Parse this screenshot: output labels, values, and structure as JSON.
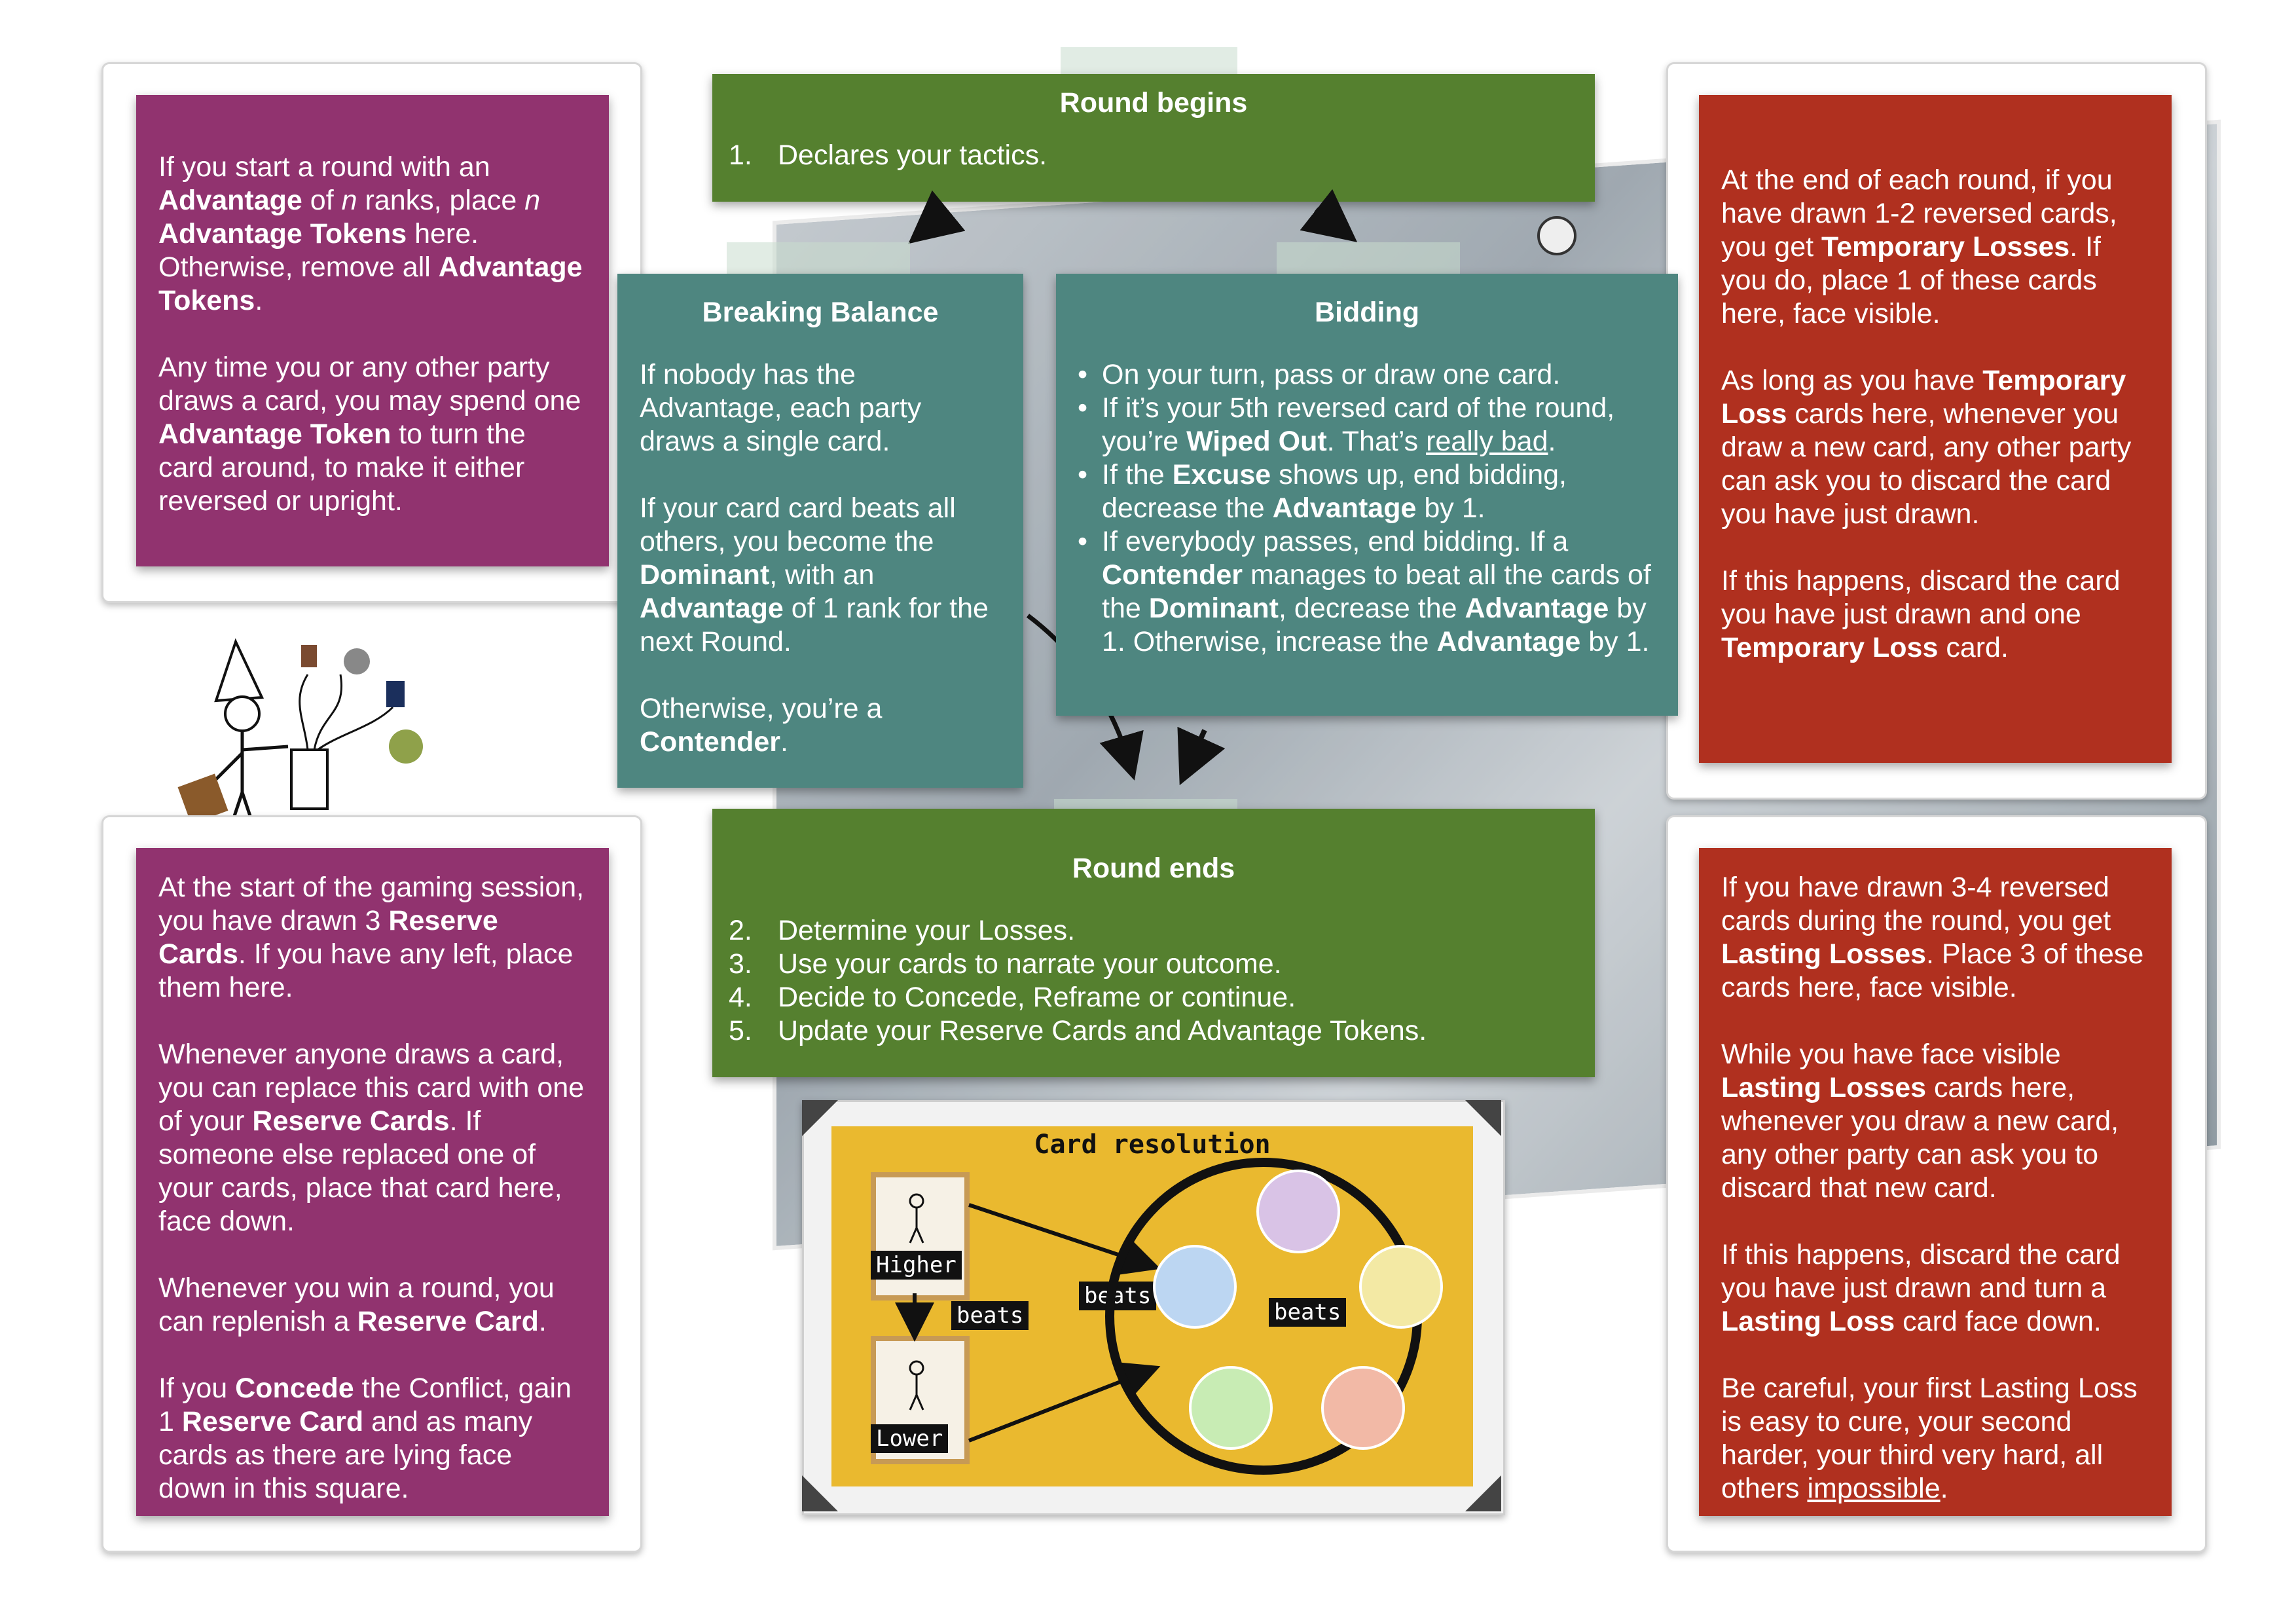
{
  "colors": {
    "purple": "#91336f",
    "red": "#b0301f",
    "green": "#55802f",
    "teal": "#4e8680",
    "gold": "#eab92f"
  },
  "advantage_box": {
    "p1": [
      "If you start a round with an ",
      "Advantage",
      " of ",
      "n",
      " ranks, place ",
      "n",
      " ",
      "Advantage Tokens",
      " here. Otherwise, remove all ",
      "Advantage Tokens",
      "."
    ],
    "p2": [
      "Any time you or any other party draws a card, you may spend one ",
      "Advantage Token",
      " to turn the card around, to make it either reversed or upright."
    ]
  },
  "reserve_box": {
    "p1": [
      "At the start of the gaming session, you have drawn 3 ",
      "Reserve Cards",
      ". If you have any left, place them here."
    ],
    "p2": [
      "Whenever anyone draws a card, you can replace this card with one of your ",
      "Reserve Cards",
      ". If someone else replaced one of your cards, place that card here, face down."
    ],
    "p3": [
      "Whenever you win a round, you can replenish a ",
      "Reserve Card",
      "."
    ],
    "p4": [
      "If you ",
      "Concede",
      " the Conflict, gain 1 ",
      "Reserve Card",
      " and as many cards as there are lying face down in this square."
    ]
  },
  "round_begins": {
    "title": "Round begins",
    "steps": [
      {
        "n": "1.",
        "text": "Declares your tactics."
      }
    ]
  },
  "breaking_balance": {
    "title": "Breaking Balance",
    "p1": "If nobody has the Advantage, each party draws a single card.",
    "p2": [
      "If your card card beats all others, you become the ",
      "Dominant",
      ", with an ",
      "Advantage",
      " of 1 rank for the next Round."
    ],
    "p3": [
      "Otherwise, you’re a ",
      "Contender",
      "."
    ]
  },
  "bidding": {
    "title": "Bidding",
    "b1": "On your turn, pass or draw one card.",
    "b2": [
      "If it’s your 5th reversed card of the round, you’re ",
      "Wiped Out",
      ". That’s ",
      "really bad",
      "."
    ],
    "b3": [
      "If the ",
      "Excuse",
      " shows up, end bidding, decrease the ",
      "Advantage",
      " by 1."
    ],
    "b4": [
      "If everybody passes, end bidding. If a ",
      "Contender",
      " manages to beat all the cards of the ",
      "Dominant",
      ", decrease the ",
      "Advantage",
      " by 1. Otherwise, increase the ",
      "Advantage",
      " by 1."
    ]
  },
  "round_ends": {
    "title": "Round ends",
    "steps": [
      {
        "n": "2.",
        "text": "Determine your Losses."
      },
      {
        "n": "3.",
        "text": "Use your cards to narrate your outcome."
      },
      {
        "n": "4.",
        "text": "Decide to Concede, Reframe or continue."
      },
      {
        "n": "5.",
        "text": "Update your Reserve Cards and Advantage Tokens."
      }
    ]
  },
  "temporary_box": {
    "p1": [
      "At the end of each round, if you have drawn 1-2 reversed cards, you get ",
      "Temporary Losses",
      ". If you do, place 1 of these cards here, face visible."
    ],
    "p2": [
      "As long as you have ",
      "Temporary Loss",
      " cards here, whenever you draw a new card, any other party can ask you to discard the card you have just drawn."
    ],
    "p3": [
      "If this happens, discard the card you have just drawn and one ",
      "Temporary Loss",
      " card."
    ]
  },
  "lasting_box": {
    "p1": [
      "If you have drawn 3-4 reversed cards during the round, you get ",
      "Lasting Losses",
      ". Place 3 of these cards here, face visible."
    ],
    "p2": [
      "While you have face visible ",
      "Lasting Losses",
      " cards here, whenever you draw a new card, any other party can ask you to discard that new card."
    ],
    "p3": [
      "If this happens, discard the card you have just drawn and turn a ",
      "Lasting Loss",
      " card face down."
    ],
    "p4": [
      "Be careful, your first Lasting Loss is easy to cure, your second harder, your third very hard, all others ",
      "impossible",
      "."
    ]
  },
  "card_resolution": {
    "title": "Card resolution",
    "higher": "Higher",
    "lower": "Lower",
    "beats_1": "beats",
    "beats_2": "beats",
    "beats_3": "beats"
  }
}
